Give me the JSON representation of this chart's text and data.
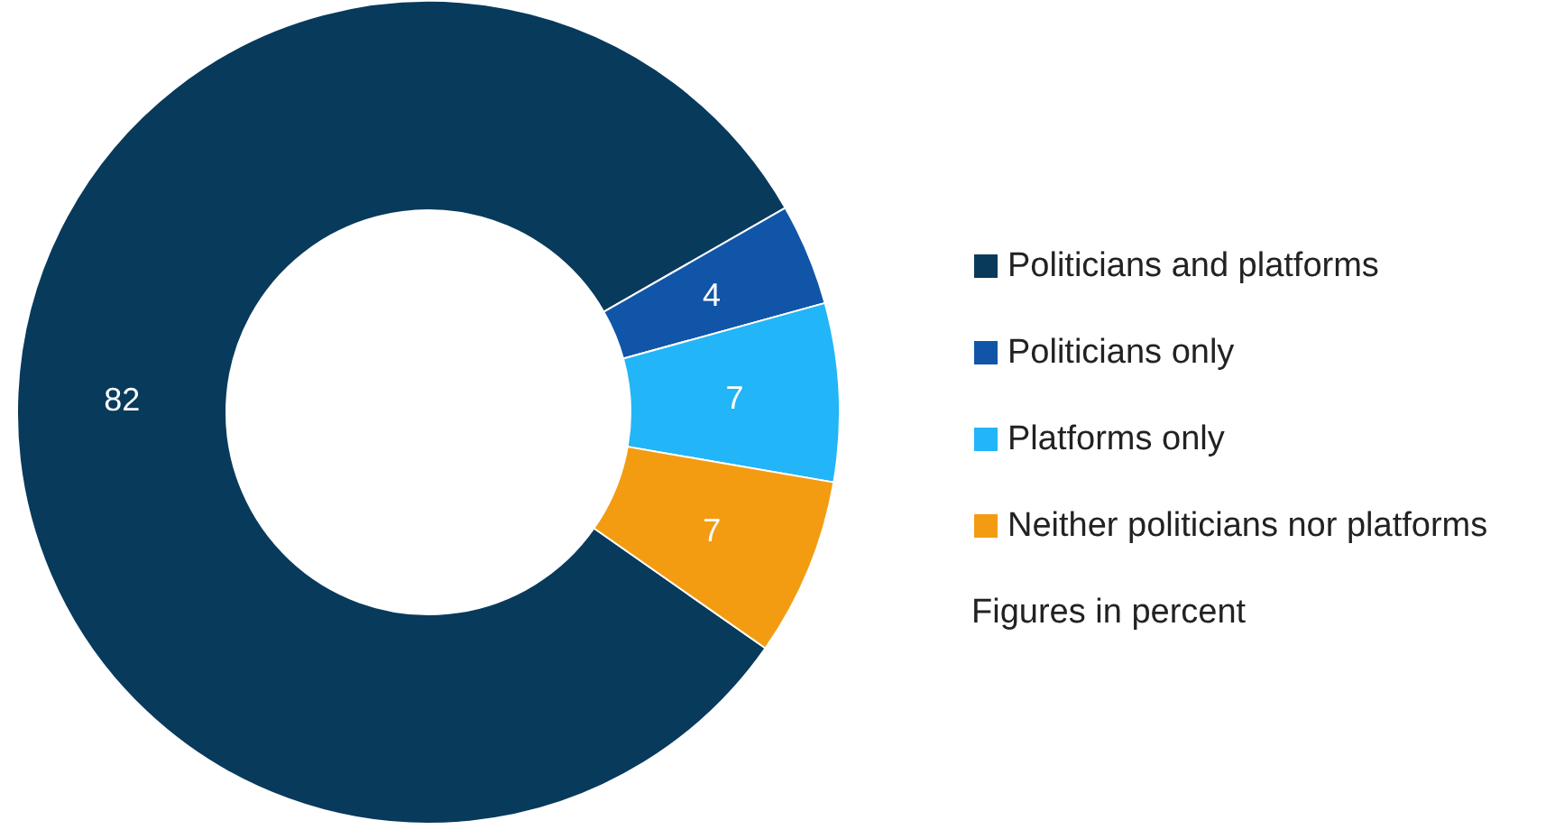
{
  "chart_data": {
    "type": "donut",
    "categories": [
      "Politicians and platforms",
      "Politicians only",
      "Platforms only",
      "Neither politicians nor platforms"
    ],
    "values": [
      82,
      4,
      7,
      7
    ],
    "colors": [
      "#083a5c",
      "#1155a8",
      "#22b5f7",
      "#f39c12"
    ],
    "data_labels": true,
    "legend": "right",
    "annotations": [
      "Figures in percent"
    ]
  }
}
